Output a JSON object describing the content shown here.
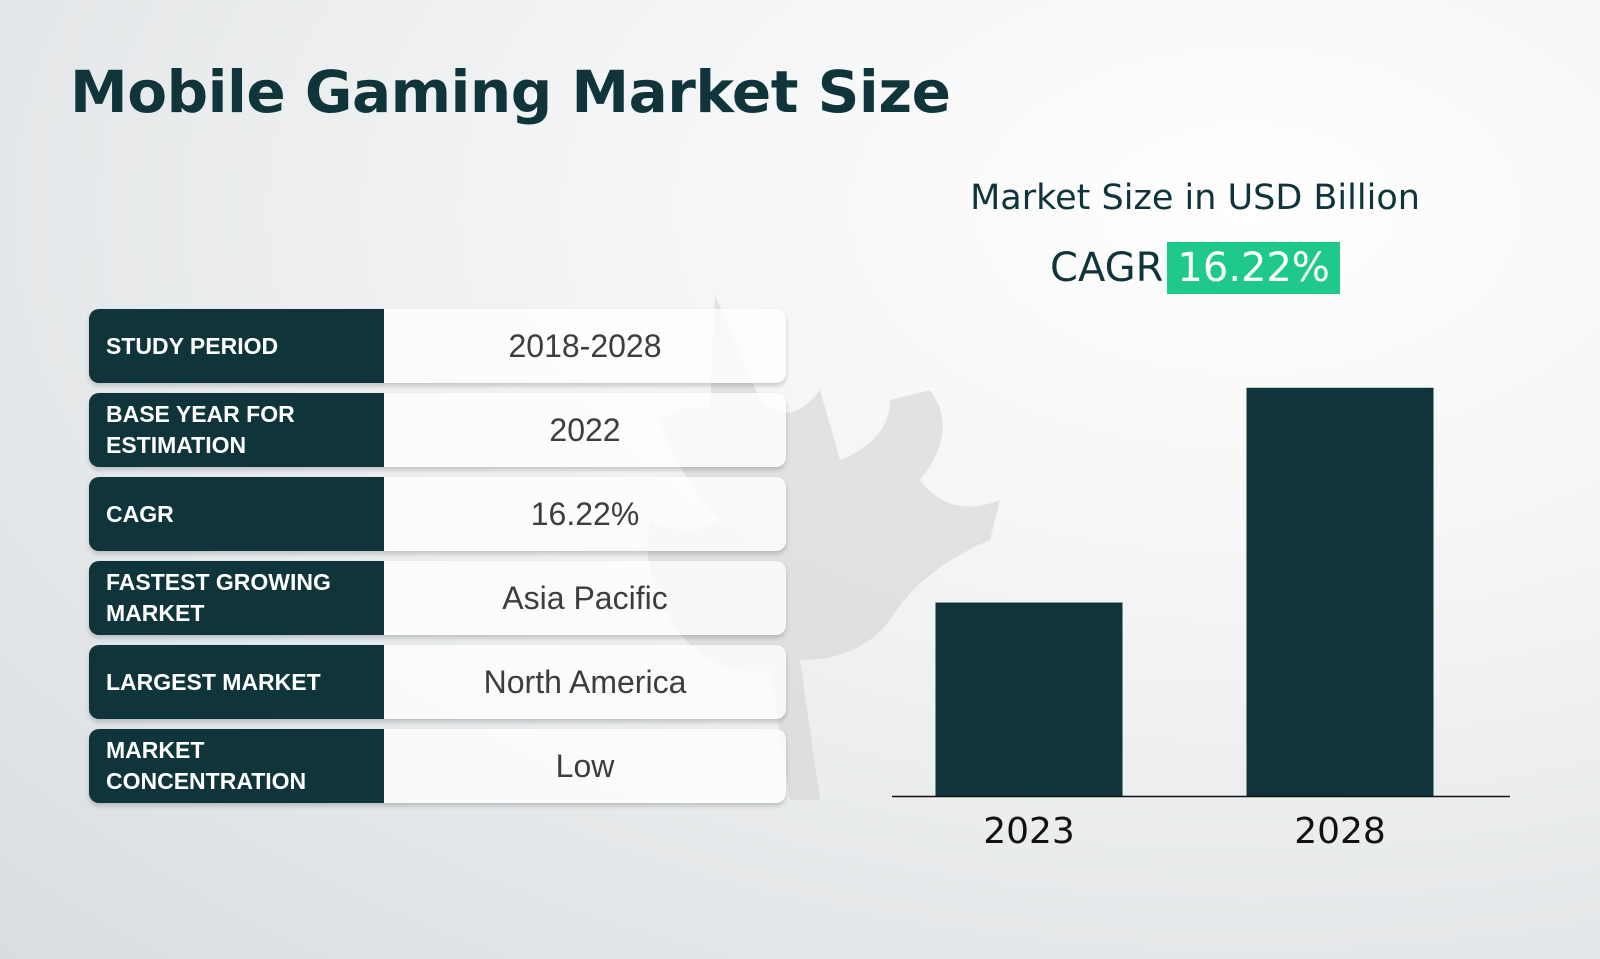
{
  "page": {
    "title": "Mobile Gaming Market Size"
  },
  "summary_table": [
    {
      "label": "STUDY PERIOD",
      "value": "2018-2028"
    },
    {
      "label": "BASE YEAR FOR ESTIMATION",
      "value": "2022"
    },
    {
      "label": "CAGR",
      "value": "16.22%"
    },
    {
      "label": "FASTEST GROWING MARKET",
      "value": "Asia Pacific"
    },
    {
      "label": "LARGEST MARKET",
      "value": "North America"
    },
    {
      "label": "MARKET CONCENTRATION",
      "value": "Low"
    }
  ],
  "chart_header": {
    "title": "Market Size in USD Billion",
    "cagr_label": "CAGR",
    "cagr_value": "16.22%"
  },
  "colors": {
    "primary": "#0f353b",
    "accent": "#1fc98a",
    "bar": "#0f353b"
  },
  "watermark_icon": "maple-leaf-logo",
  "chart_data": {
    "type": "bar",
    "categories": [
      "2023",
      "2028"
    ],
    "values": [
      100,
      211
    ],
    "title": "Market Size in USD Billion",
    "xlabel": "",
    "ylabel": "",
    "ylim": [
      0,
      230
    ],
    "grid": false,
    "legend": "none"
  }
}
